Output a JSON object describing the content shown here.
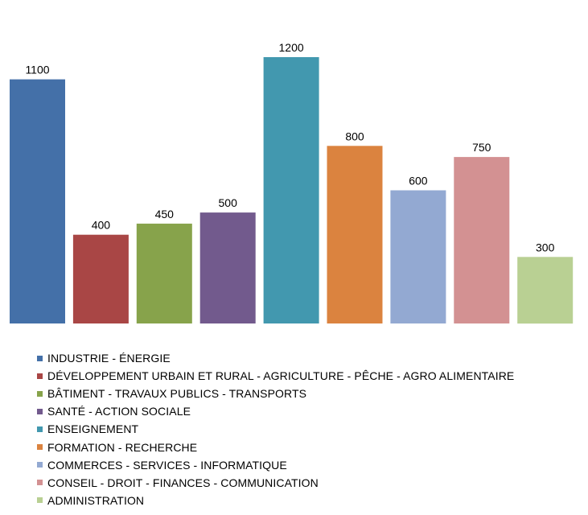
{
  "chart_data": {
    "type": "bar",
    "categories": [
      "INDUSTRIE - ÉNERGIE",
      "DÉVELOPPEMENT URBAIN ET RURAL - AGRICULTURE - PÊCHE - AGRO ALIMENTAIRE",
      "BÂTIMENT - TRAVAUX PUBLICS - TRANSPORTS",
      "SANTÉ - ACTION SOCIALE",
      "ENSEIGNEMENT",
      "FORMATION - RECHERCHE",
      "COMMERCES - SERVICES - INFORMATIQUE",
      "CONSEIL - DROIT - FINANCES - COMMUNICATION",
      "ADMINISTRATION"
    ],
    "values": [
      1100,
      400,
      450,
      500,
      1200,
      800,
      600,
      750,
      300
    ],
    "value_labels": [
      "1100",
      "400",
      "450",
      "500",
      "1200",
      "800",
      "600",
      "750",
      "300"
    ],
    "colors": [
      "#4470A8",
      "#A94645",
      "#87A34B",
      "#725A8D",
      "#4298AF",
      "#DB833F",
      "#93A9D2",
      "#D39192",
      "#B9D093"
    ],
    "title": "",
    "xlabel": "",
    "ylabel": "",
    "ylim": [
      0,
      1200
    ],
    "grid": false,
    "legend": "bottom"
  }
}
